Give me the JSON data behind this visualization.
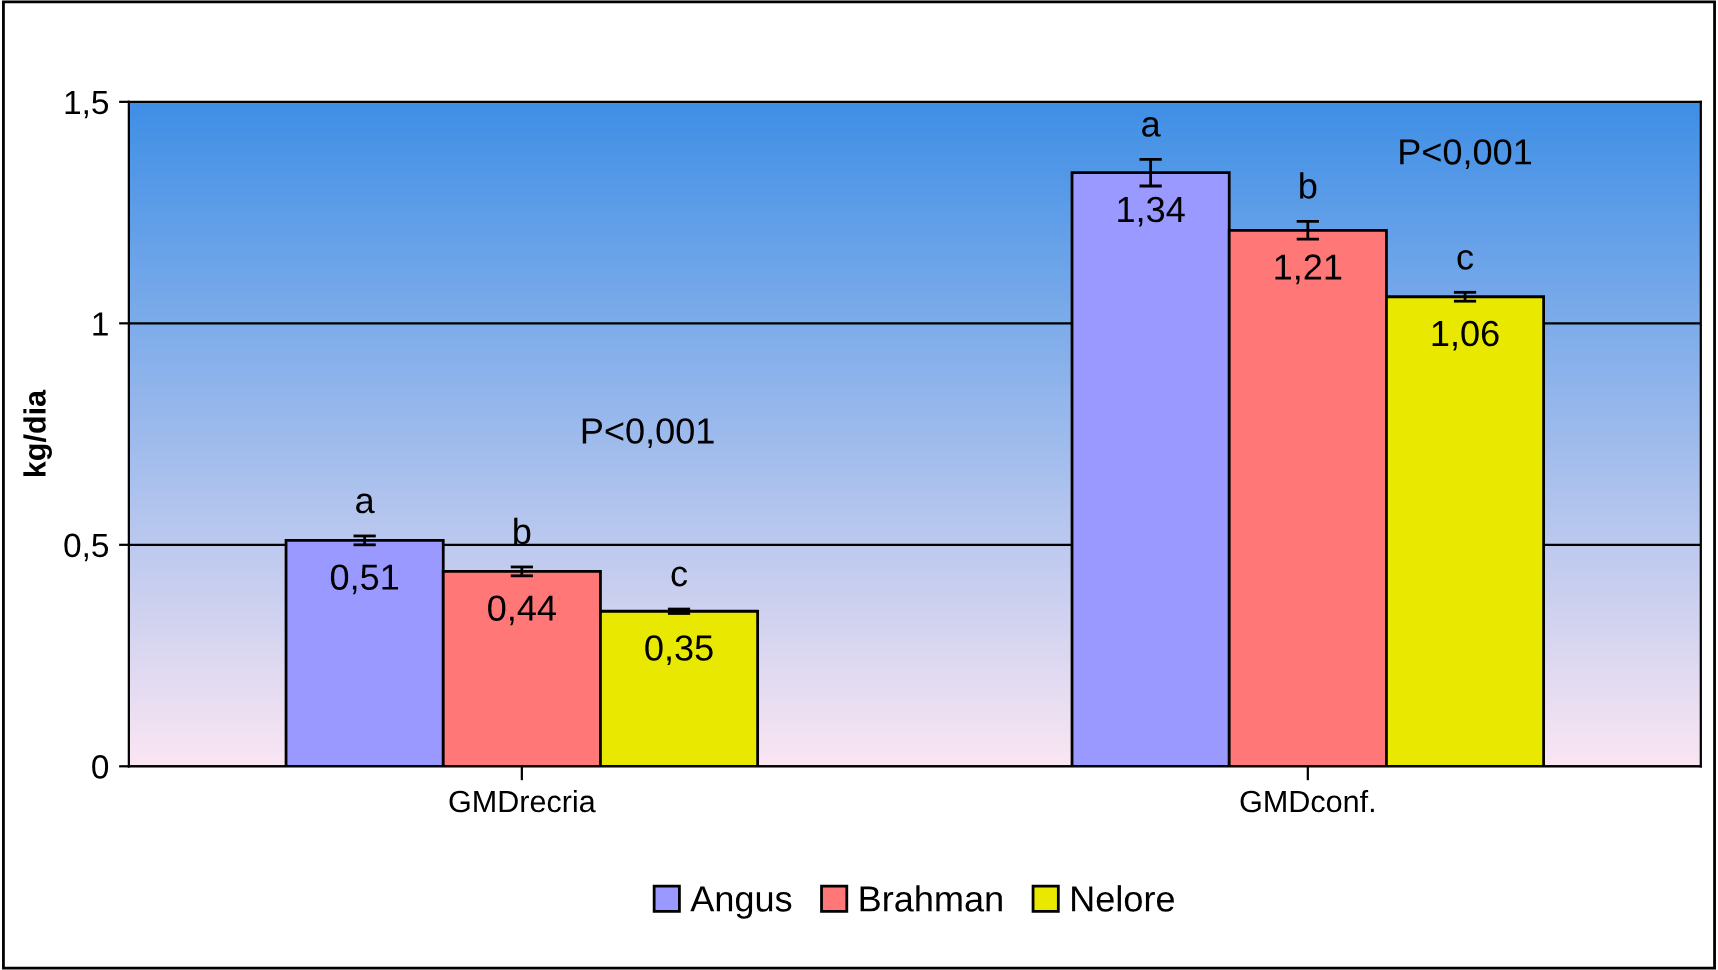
{
  "chart_data": {
    "type": "bar",
    "ylabel": "kg/dia",
    "categories": [
      "GMDrecria",
      "GMDconf."
    ],
    "series": [
      {
        "name": "Angus",
        "color": "#9999ff",
        "values": [
          0.51,
          1.34
        ],
        "errors": [
          0.01,
          0.03
        ],
        "value_labels": [
          "0,51",
          "1,34"
        ]
      },
      {
        "name": "Brahman",
        "color": "#ff7777",
        "values": [
          0.44,
          1.21
        ],
        "errors": [
          0.01,
          0.02
        ],
        "value_labels": [
          "0,44",
          "1,21"
        ]
      },
      {
        "name": "Nelore",
        "color": "#e8e800",
        "values": [
          0.35,
          1.06
        ],
        "errors": [
          0.005,
          0.01
        ],
        "value_labels": [
          "0,35",
          "1,06"
        ]
      }
    ],
    "ylim": [
      0,
      1.5
    ],
    "yticks": [
      0,
      {
        "value": 0.5,
        "label": "0,5"
      },
      1,
      {
        "value": 1.5,
        "label": "1,5"
      }
    ],
    "grid": "y",
    "legend": "bottom",
    "annotations": [
      "a",
      "b",
      "c",
      "a",
      "b",
      "c",
      "P<0,001",
      "P<0,001"
    ]
  }
}
